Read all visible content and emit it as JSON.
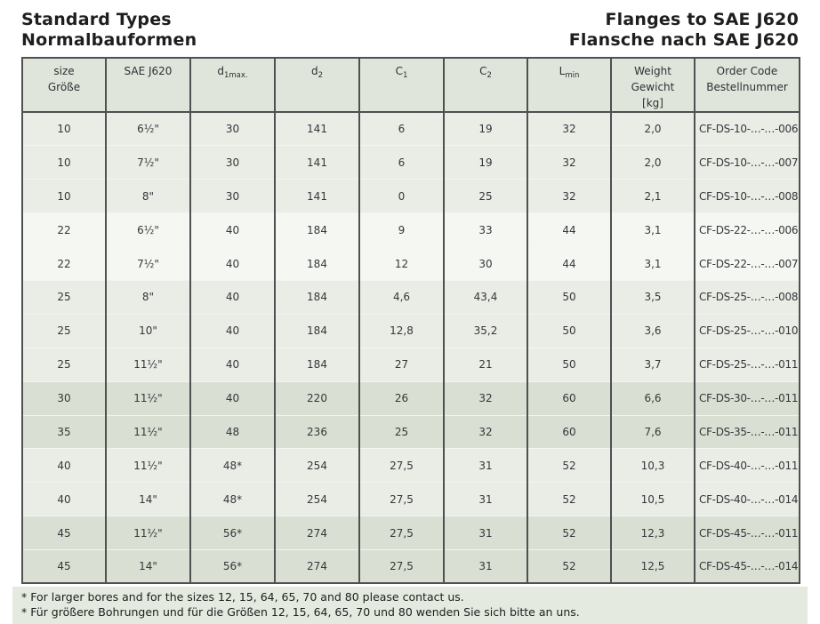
{
  "header": {
    "title_left": [
      "Standard Types",
      "Normalbauformen"
    ],
    "title_right": [
      "Flanges to SAE J620",
      "Flansche nach SAE J620"
    ]
  },
  "table": {
    "columns": [
      {
        "key": "size",
        "lines": [
          "size",
          "Größe"
        ]
      },
      {
        "key": "sae",
        "lines": [
          "SAE J620"
        ]
      },
      {
        "key": "d1max",
        "base": "d",
        "sub": "1max."
      },
      {
        "key": "d2",
        "base": "d",
        "sub": "2"
      },
      {
        "key": "c1",
        "base": "C",
        "sub": "1"
      },
      {
        "key": "c2",
        "base": "C",
        "sub": "2"
      },
      {
        "key": "lmin",
        "base": "L",
        "sub": "min"
      },
      {
        "key": "weight",
        "lines": [
          "Weight",
          "Gewicht",
          "[kg]"
        ]
      },
      {
        "key": "order",
        "lines": [
          "Order Code",
          "Bestellnummer"
        ]
      }
    ],
    "rows": [
      {
        "band": "mid",
        "cells": [
          "10",
          "6½\"",
          "30",
          "141",
          "6",
          "19",
          "32",
          "2,0",
          "CF-DS-10-…-…-006"
        ]
      },
      {
        "band": "mid",
        "cells": [
          "10",
          "7½\"",
          "30",
          "141",
          "6",
          "19",
          "32",
          "2,0",
          "CF-DS-10-…-…-007"
        ]
      },
      {
        "band": "mid",
        "cells": [
          "10",
          "8\"",
          "30",
          "141",
          "0",
          "25",
          "32",
          "2,1",
          "CF-DS-10-…-…-008"
        ]
      },
      {
        "band": "light",
        "cells": [
          "22",
          "6½\"",
          "40",
          "184",
          "9",
          "33",
          "44",
          "3,1",
          "CF-DS-22-…-…-006"
        ]
      },
      {
        "band": "light",
        "cells": [
          "22",
          "7½\"",
          "40",
          "184",
          "12",
          "30",
          "44",
          "3,1",
          "CF-DS-22-…-…-007"
        ]
      },
      {
        "band": "mid",
        "cells": [
          "25",
          "8\"",
          "40",
          "184",
          "4,6",
          "43,4",
          "50",
          "3,5",
          "CF-DS-25-…-…-008"
        ]
      },
      {
        "band": "mid",
        "cells": [
          "25",
          "10\"",
          "40",
          "184",
          "12,8",
          "35,2",
          "50",
          "3,6",
          "CF-DS-25-…-…-010"
        ]
      },
      {
        "band": "mid",
        "cells": [
          "25",
          "11½\"",
          "40",
          "184",
          "27",
          "21",
          "50",
          "3,7",
          "CF-DS-25-…-…-011"
        ]
      },
      {
        "band": "dark",
        "cells": [
          "30",
          "11½\"",
          "40",
          "220",
          "26",
          "32",
          "60",
          "6,6",
          "CF-DS-30-…-…-011"
        ]
      },
      {
        "band": "dark",
        "cells": [
          "35",
          "11½\"",
          "48",
          "236",
          "25",
          "32",
          "60",
          "7,6",
          "CF-DS-35-…-…-011"
        ]
      },
      {
        "band": "mid",
        "cells": [
          "40",
          "11½\"",
          "48*",
          "254",
          "27,5",
          "31",
          "52",
          "10,3",
          "CF-DS-40-…-…-011"
        ]
      },
      {
        "band": "mid",
        "cells": [
          "40",
          "14\"",
          "48*",
          "254",
          "27,5",
          "31",
          "52",
          "10,5",
          "CF-DS-40-…-…-014"
        ]
      },
      {
        "band": "dark",
        "cells": [
          "45",
          "11½\"",
          "56*",
          "274",
          "27,5",
          "31",
          "52",
          "12,3",
          "CF-DS-45-…-…-011"
        ]
      },
      {
        "band": "dark",
        "cells": [
          "45",
          "14\"",
          "56*",
          "274",
          "27,5",
          "31",
          "52",
          "12,5",
          "CF-DS-45-…-…-014"
        ]
      }
    ]
  },
  "footnotes": [
    "* For larger bores and for the sizes 12, 15, 64, 65, 70 and 80 please contact us.",
    "* Für größere Bohrungen und für die Größen 12, 15, 64, 65, 70 und 80 wenden Sie sich bitte an uns."
  ],
  "colors": {
    "band_light": "#f4f7f2",
    "band_mid": "#e9ede5",
    "band_dark": "#d9dfd2",
    "header_bg": "#dfe5da",
    "footnote_bg": "#e5eae0",
    "border_dark": "#4f5051",
    "row_divider": "#f3f5f0",
    "text": "#34383c",
    "title_text": "#1e1e1e"
  }
}
